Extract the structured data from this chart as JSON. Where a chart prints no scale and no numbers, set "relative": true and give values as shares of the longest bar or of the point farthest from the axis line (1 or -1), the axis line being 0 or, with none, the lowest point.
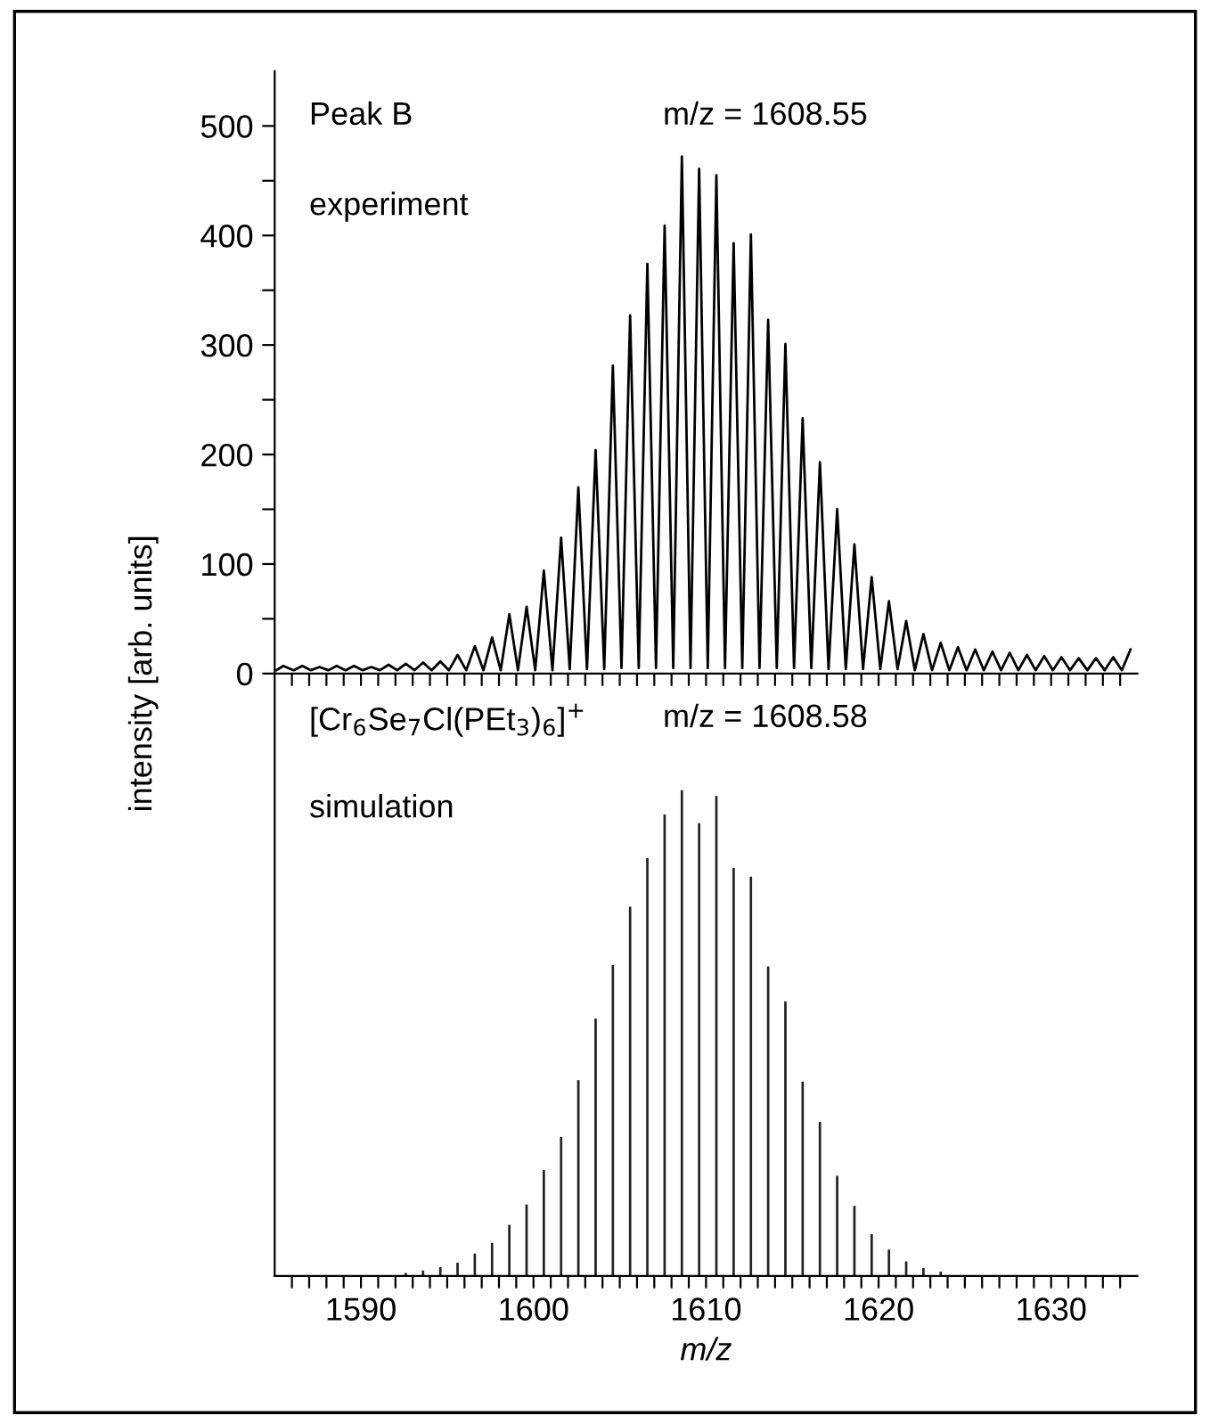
{
  "chart_data": [
    {
      "type": "line",
      "ylabel": "intensity [arb. units]",
      "annotations": [
        "Peak B",
        "m/z = 1608.55",
        "experiment"
      ],
      "xlim": [
        1585,
        1635
      ],
      "ylim": [
        0,
        550
      ],
      "tick_labels": "y",
      "grid": false,
      "legend": false,
      "marker": "none",
      "line_style": "solid",
      "xticks": [
        {
          "value": 1586,
          "label": null
        },
        {
          "value": 1587,
          "label": null
        },
        {
          "value": 1588,
          "label": null
        },
        {
          "value": 1589,
          "label": null
        },
        {
          "value": 1590,
          "label": null
        },
        {
          "value": 1591,
          "label": null
        },
        {
          "value": 1592,
          "label": null
        },
        {
          "value": 1593,
          "label": null
        },
        {
          "value": 1594,
          "label": null
        },
        {
          "value": 1595,
          "label": null
        },
        {
          "value": 1596,
          "label": null
        },
        {
          "value": 1597,
          "label": null
        },
        {
          "value": 1598,
          "label": null
        },
        {
          "value": 1599,
          "label": null
        },
        {
          "value": 1600,
          "label": null
        },
        {
          "value": 1601,
          "label": null
        },
        {
          "value": 1602,
          "label": null
        },
        {
          "value": 1603,
          "label": null
        },
        {
          "value": 1604,
          "label": null
        },
        {
          "value": 1605,
          "label": null
        },
        {
          "value": 1606,
          "label": null
        },
        {
          "value": 1607,
          "label": null
        },
        {
          "value": 1608,
          "label": null
        },
        {
          "value": 1609,
          "label": null
        },
        {
          "value": 1610,
          "label": null
        },
        {
          "value": 1611,
          "label": null
        },
        {
          "value": 1612,
          "label": null
        },
        {
          "value": 1613,
          "label": null
        },
        {
          "value": 1614,
          "label": null
        },
        {
          "value": 1615,
          "label": null
        },
        {
          "value": 1616,
          "label": null
        },
        {
          "value": 1617,
          "label": null
        },
        {
          "value": 1618,
          "label": null
        },
        {
          "value": 1619,
          "label": null
        },
        {
          "value": 1620,
          "label": null
        },
        {
          "value": 1621,
          "label": null
        },
        {
          "value": 1622,
          "label": null
        },
        {
          "value": 1623,
          "label": null
        },
        {
          "value": 1624,
          "label": null
        },
        {
          "value": 1625,
          "label": null
        },
        {
          "value": 1626,
          "label": null
        },
        {
          "value": 1627,
          "label": null
        },
        {
          "value": 1628,
          "label": null
        },
        {
          "value": 1629,
          "label": null
        },
        {
          "value": 1630,
          "label": null
        },
        {
          "value": 1631,
          "label": null
        },
        {
          "value": 1632,
          "label": null
        },
        {
          "value": 1633,
          "label": null
        },
        {
          "value": 1634,
          "label": null
        }
      ],
      "yticks": [
        0,
        {
          "value": 50,
          "label": null
        },
        100,
        {
          "value": 150,
          "label": null
        },
        200,
        {
          "value": 250,
          "label": null
        },
        300,
        {
          "value": 350,
          "label": null
        },
        400,
        {
          "value": 450,
          "label": null
        },
        500
      ],
      "series": [
        {
          "color": "#000000",
          "x": [
            1585.1,
            1585.5,
            1586.1,
            1586.6,
            1587.1,
            1587.6,
            1588.1,
            1588.6,
            1589.1,
            1589.6,
            1590.1,
            1590.6,
            1591.1,
            1591.6,
            1592.1,
            1592.6,
            1593.1,
            1593.6,
            1594.1,
            1594.6,
            1595.1,
            1595.6,
            1596.1,
            1596.6,
            1597.1,
            1597.6,
            1598.1,
            1598.6,
            1599.1,
            1599.6,
            1600.1,
            1600.6,
            1601.1,
            1601.6,
            1602.1,
            1602.6,
            1603.1,
            1603.6,
            1604.1,
            1604.6,
            1605.1,
            1605.6,
            1606.1,
            1606.6,
            1607.1,
            1607.6,
            1608.1,
            1608.6,
            1609.1,
            1609.6,
            1610.1,
            1610.6,
            1611.1,
            1611.6,
            1612.1,
            1612.6,
            1613.1,
            1613.6,
            1614.1,
            1614.6,
            1615.1,
            1615.6,
            1616.1,
            1616.6,
            1617.1,
            1617.6,
            1618.1,
            1618.6,
            1619.1,
            1619.6,
            1620.1,
            1620.6,
            1621.1,
            1621.6,
            1622.1,
            1622.6,
            1623.1,
            1623.6,
            1624.1,
            1624.6,
            1625.1,
            1625.6,
            1626.1,
            1626.6,
            1627.1,
            1627.6,
            1628.1,
            1628.6,
            1629.1,
            1629.6,
            1630.1,
            1630.6,
            1631.1,
            1631.6,
            1632.1,
            1632.6,
            1633.1,
            1633.6,
            1634.1,
            1634.6
          ],
          "values": [
            3,
            7,
            3,
            7,
            3,
            6,
            3,
            7,
            3,
            7,
            3,
            6,
            3,
            8,
            3,
            9,
            3,
            10,
            3,
            11,
            3,
            17,
            3,
            25,
            3,
            33,
            3,
            54,
            3,
            61,
            3,
            94,
            3,
            124,
            4,
            170,
            4,
            204,
            4,
            281,
            5,
            327,
            5,
            374,
            5,
            409,
            5,
            472,
            5,
            461,
            5,
            455,
            5,
            393,
            5,
            401,
            5,
            323,
            5,
            301,
            5,
            233,
            5,
            193,
            4,
            150,
            4,
            118,
            4,
            88,
            4,
            66,
            4,
            48,
            3,
            36,
            3,
            28,
            3,
            24,
            3,
            22,
            3,
            20,
            3,
            19,
            3,
            17,
            3,
            16,
            3,
            15,
            3,
            14,
            3,
            14,
            3,
            15,
            3,
            22
          ]
        }
      ]
    },
    {
      "type": "bar",
      "relative": true,
      "xlabel": "m/z",
      "annotations": [
        "[Cr$_{6}$Se$_{7}$Cl(PEt$_{3}$)$_{6}$]$^{+}$",
        "m/z = 1608.58",
        "simulation"
      ],
      "xlim": [
        1585,
        1635
      ],
      "tick_labels": "x",
      "grid": false,
      "legend": false,
      "xticks": [
        {
          "value": 1586,
          "label": null
        },
        {
          "value": 1587,
          "label": null
        },
        {
          "value": 1588,
          "label": null
        },
        {
          "value": 1589,
          "label": null
        },
        1590,
        {
          "value": 1591,
          "label": null
        },
        {
          "value": 1592,
          "label": null
        },
        {
          "value": 1593,
          "label": null
        },
        {
          "value": 1594,
          "label": null
        },
        {
          "value": 1595,
          "label": null
        },
        {
          "value": 1596,
          "label": null
        },
        {
          "value": 1597,
          "label": null
        },
        {
          "value": 1598,
          "label": null
        },
        {
          "value": 1599,
          "label": null
        },
        1600,
        {
          "value": 1601,
          "label": null
        },
        {
          "value": 1602,
          "label": null
        },
        {
          "value": 1603,
          "label": null
        },
        {
          "value": 1604,
          "label": null
        },
        {
          "value": 1605,
          "label": null
        },
        {
          "value": 1606,
          "label": null
        },
        {
          "value": 1607,
          "label": null
        },
        {
          "value": 1608,
          "label": null
        },
        {
          "value": 1609,
          "label": null
        },
        1610,
        {
          "value": 1611,
          "label": null
        },
        {
          "value": 1612,
          "label": null
        },
        {
          "value": 1613,
          "label": null
        },
        {
          "value": 1614,
          "label": null
        },
        {
          "value": 1615,
          "label": null
        },
        {
          "value": 1616,
          "label": null
        },
        {
          "value": 1617,
          "label": null
        },
        {
          "value": 1618,
          "label": null
        },
        {
          "value": 1619,
          "label": null
        },
        1620,
        {
          "value": 1621,
          "label": null
        },
        {
          "value": 1622,
          "label": null
        },
        {
          "value": 1623,
          "label": null
        },
        {
          "value": 1624,
          "label": null
        },
        {
          "value": 1625,
          "label": null
        },
        {
          "value": 1626,
          "label": null
        },
        {
          "value": 1627,
          "label": null
        },
        {
          "value": 1628,
          "label": null
        },
        {
          "value": 1629,
          "label": null
        },
        1630,
        {
          "value": 1631,
          "label": null
        },
        {
          "value": 1632,
          "label": null
        },
        {
          "value": 1633,
          "label": null
        },
        {
          "value": 1634,
          "label": null
        }
      ],
      "series": [
        {
          "color": "#222222",
          "x": [
            1592.6,
            1593.6,
            1594.6,
            1595.6,
            1596.6,
            1597.6,
            1598.6,
            1599.6,
            1600.6,
            1601.6,
            1602.6,
            1603.6,
            1604.6,
            1605.6,
            1606.6,
            1607.6,
            1608.6,
            1609.6,
            1610.6,
            1611.6,
            1612.6,
            1613.6,
            1614.6,
            1615.6,
            1616.6,
            1617.6,
            1618.6,
            1619.6,
            1620.6,
            1621.6,
            1622.6,
            1623.6
          ],
          "values": [
            0.006,
            0.011,
            0.018,
            0.027,
            0.046,
            0.068,
            0.105,
            0.147,
            0.218,
            0.286,
            0.403,
            0.53,
            0.64,
            0.76,
            0.86,
            0.95,
            1.0,
            0.932,
            0.988,
            0.84,
            0.822,
            0.637,
            0.565,
            0.4,
            0.317,
            0.206,
            0.144,
            0.086,
            0.054,
            0.03,
            0.016,
            0.009
          ]
        }
      ]
    }
  ]
}
